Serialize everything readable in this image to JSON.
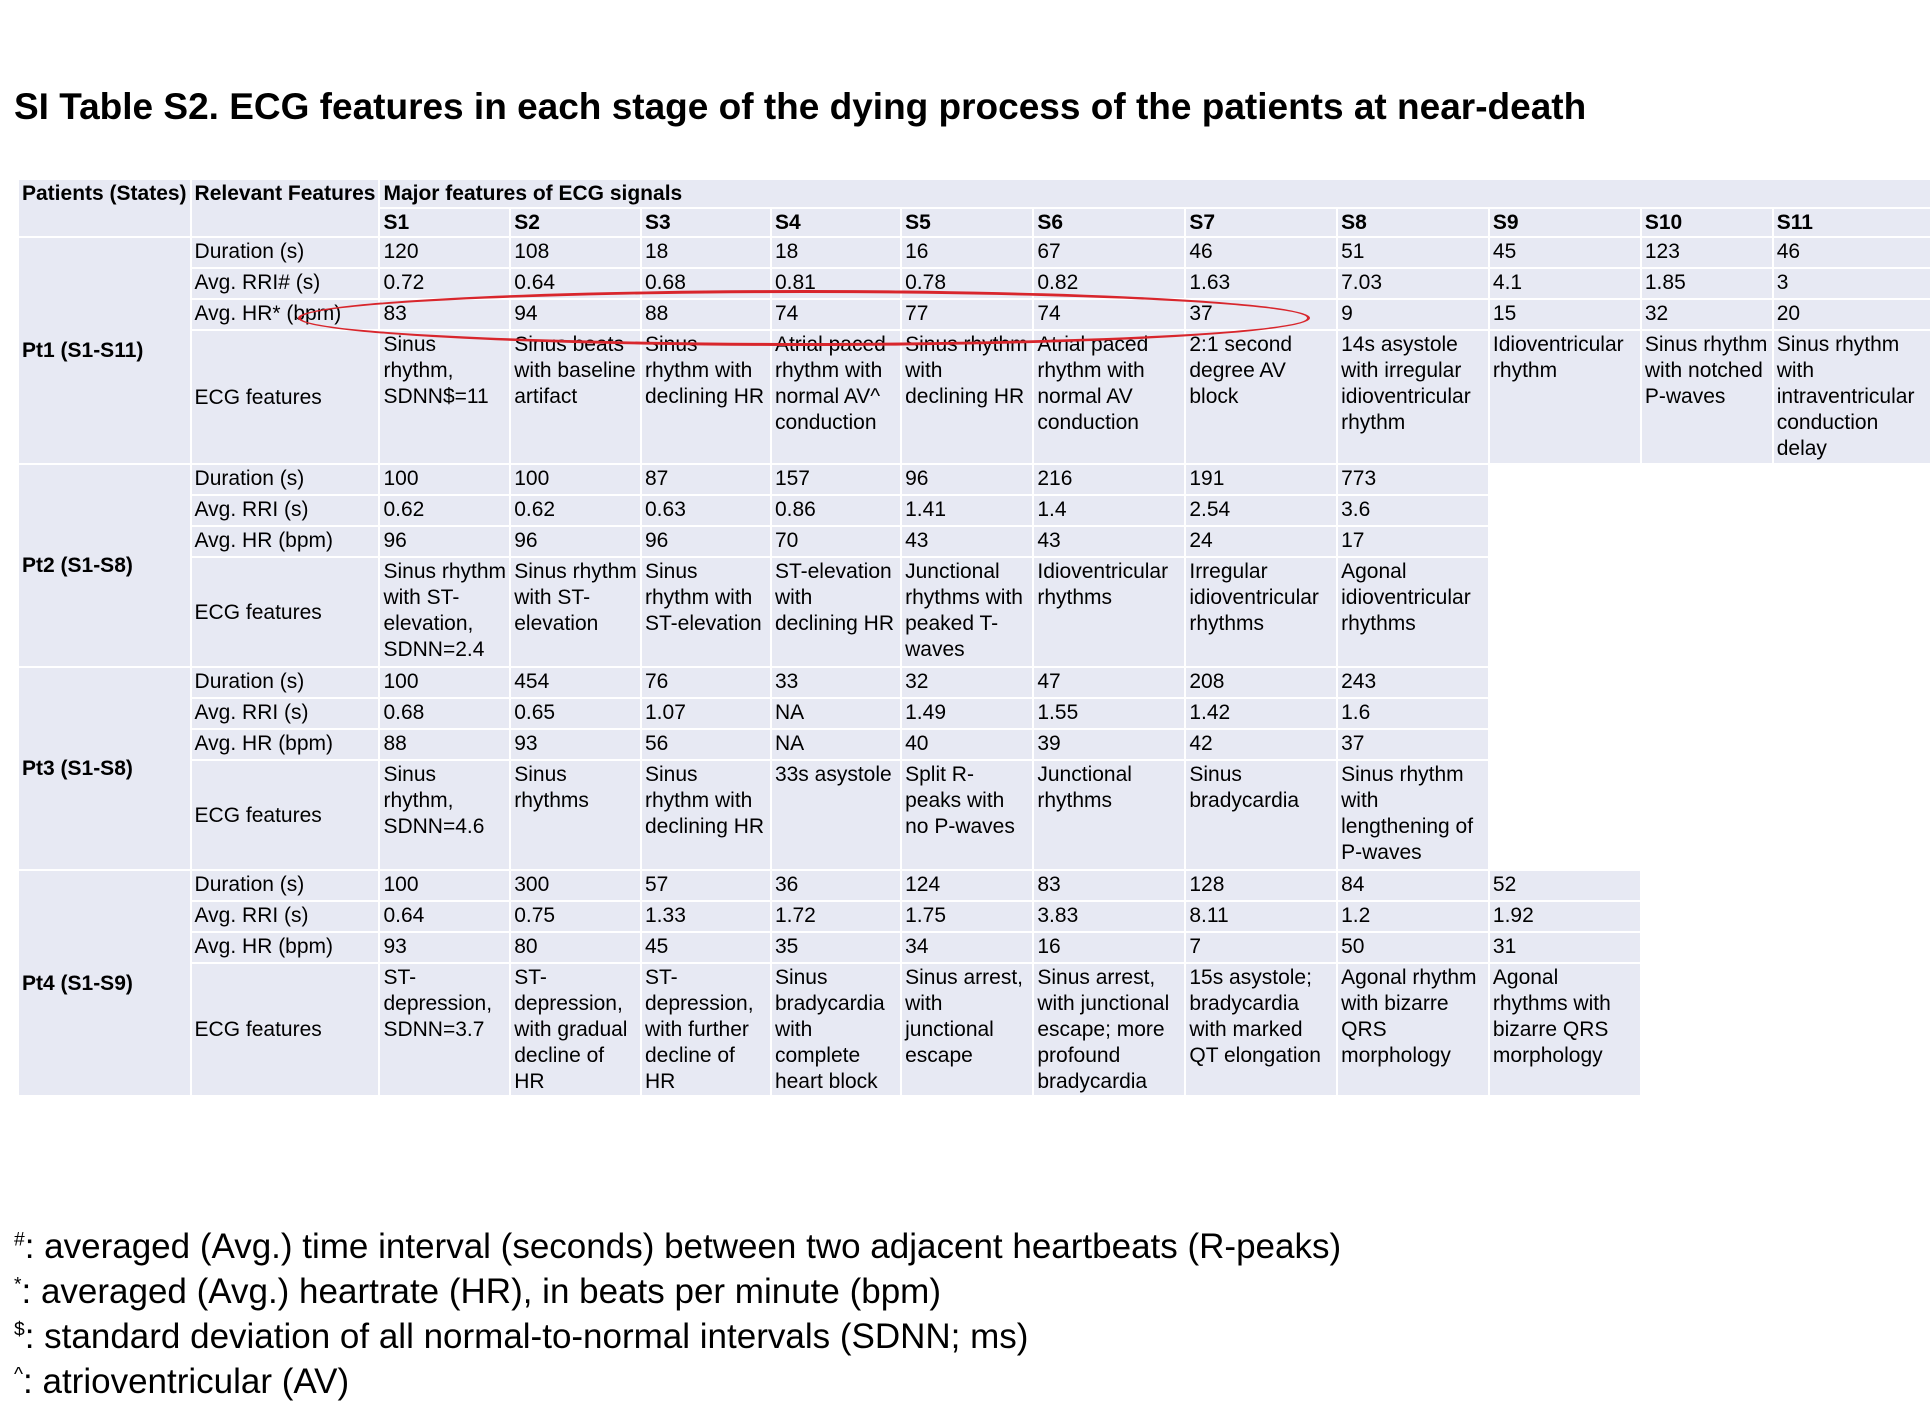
{
  "title": "SI Table S2. ECG features in each stage of the dying process of the patients at near-death",
  "header": {
    "patients_states": "Patients (States)",
    "relevant_features": "Relevant Features",
    "major_features": "Major features of ECG signals",
    "stages": [
      "S1",
      "S2",
      "S3",
      "S4",
      "S5",
      "S6",
      "S7",
      "S8",
      "S9",
      "S10",
      "S11"
    ]
  },
  "patients": [
    {
      "label": "Pt1 (S1-S11)",
      "labels": [
        "Duration (s)",
        "Avg. RRI# (s)",
        "Avg. HR* (bpm)",
        "ECG features"
      ],
      "duration": [
        "120",
        "108",
        "18",
        "18",
        "16",
        "67",
        "46",
        "51",
        "45",
        "123",
        "46"
      ],
      "rri": [
        "0.72",
        "0.64",
        "0.68",
        "0.81",
        "0.78",
        "0.82",
        "1.63",
        "7.03",
        "4.1",
        "1.85",
        "3"
      ],
      "hr": [
        "83",
        "94",
        "88",
        "74",
        "77",
        "74",
        "37",
        "9",
        "15",
        "32",
        "20"
      ],
      "ecg": [
        "Sinus rhythm, SDNN$=11",
        "Sinus beats with baseline artifact",
        "Sinus rhythm with declining HR",
        "Atrial paced rhythm with normal AV^ conduction",
        "Sinus rhythm with declining HR",
        "Atrial paced rhythm with normal AV conduction",
        "2:1 second degree AV block",
        "14s asystole with irregular idioventricular rhythm",
        "Idioventricular rhythm",
        "Sinus rhythm with notched P-waves",
        "Sinus rhythm with intraventricular conduction delay"
      ]
    },
    {
      "label": "Pt2 (S1-S8)",
      "labels": [
        "Duration (s)",
        "Avg. RRI (s)",
        "Avg. HR (bpm)",
        "ECG features"
      ],
      "duration": [
        "100",
        "100",
        "87",
        "157",
        "96",
        "216",
        "191",
        "773"
      ],
      "rri": [
        "0.62",
        "0.62",
        "0.63",
        "0.86",
        "1.41",
        "1.4",
        "2.54",
        "3.6"
      ],
      "hr": [
        "96",
        "96",
        "96",
        "70",
        "43",
        "43",
        "24",
        "17"
      ],
      "ecg": [
        "Sinus rhythm with ST-elevation, SDNN=2.4",
        "Sinus rhythm with ST-elevation",
        "Sinus rhythm with ST-elevation",
        "ST-elevation with declining HR",
        "Junctional rhythms with peaked T-waves",
        "Idioventricular rhythms",
        "Irregular idioventricular rhythms",
        "Agonal idioventricular rhythms"
      ]
    },
    {
      "label": "Pt3 (S1-S8)",
      "labels": [
        "Duration (s)",
        "Avg. RRI (s)",
        "Avg. HR (bpm)",
        "ECG features"
      ],
      "duration": [
        "100",
        "454",
        "76",
        "33",
        "32",
        "47",
        "208",
        "243"
      ],
      "rri": [
        "0.68",
        "0.65",
        "1.07",
        "NA",
        "1.49",
        "1.55",
        "1.42",
        "1.6"
      ],
      "hr": [
        "88",
        "93",
        "56",
        "NA",
        "40",
        "39",
        "42",
        "37"
      ],
      "ecg": [
        "Sinus rhythm, SDNN=4.6",
        "Sinus rhythms",
        "Sinus rhythm with declining HR",
        "33s asystole",
        "Split R-peaks with no P-waves",
        "Junctional rhythms",
        "Sinus bradycardia",
        "Sinus rhythm with lengthening of P-waves"
      ]
    },
    {
      "label": "Pt4 (S1-S9)",
      "labels": [
        "Duration (s)",
        "Avg. RRI (s)",
        "Avg. HR (bpm)",
        "ECG features"
      ],
      "duration": [
        "100",
        "300",
        "57",
        "36",
        "124",
        "83",
        "128",
        "84",
        "52"
      ],
      "rri": [
        "0.64",
        "0.75",
        "1.33",
        "1.72",
        "1.75",
        "3.83",
        "8.11",
        "1.2",
        "1.92"
      ],
      "hr": [
        "93",
        "80",
        "45",
        "35",
        "34",
        "16",
        "7",
        "50",
        "31"
      ],
      "ecg": [
        "ST-depression, SDNN=3.7",
        "ST-depression, with gradual decline of HR",
        "ST-depression, with further decline of HR",
        "Sinus bradycardia with complete heart block",
        "Sinus arrest, with junctional escape",
        "Sinus arrest, with junctional escape; more profound bradycardia",
        "15s asystole; bradycardia with marked QT elongation",
        "Agonal rhythm with bizarre QRS morphology",
        "Agonal rhythms with bizarre QRS morphology"
      ]
    }
  ],
  "footnotes": [
    {
      "mark": "#",
      "text": ": averaged (Avg.) time interval (seconds) between two adjacent heartbeats (R-peaks)"
    },
    {
      "mark": "*",
      "text": ": averaged (Avg.) heartrate (HR), in beats per minute (bpm)"
    },
    {
      "mark": "$",
      "text": ": standard deviation of all normal-to-normal intervals (SDNN; ms)"
    },
    {
      "mark": "^",
      "text": ": atrioventricular (AV)"
    }
  ],
  "highlight_color": "#d8262c"
}
